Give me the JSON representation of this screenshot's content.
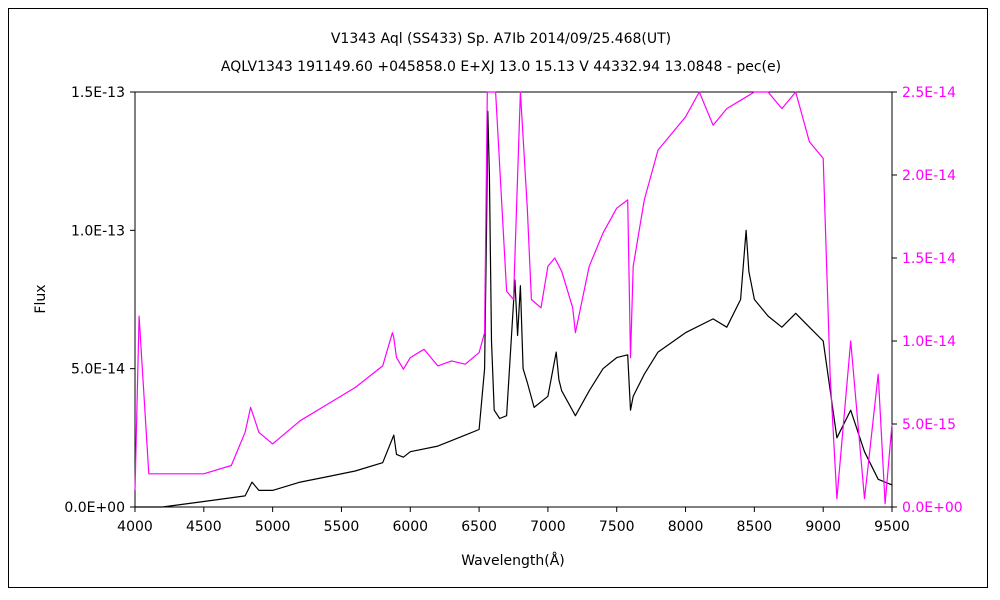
{
  "chart_data": {
    "type": "line",
    "title": "V1343 Aql (SS433)    Sp. A7Ib    2014/09/25.468(UT)",
    "subtitle": "AQLV1343 191149.60 +045858.0 E+XJ 13.0 15.13 V 44332.94 13.0848 - pec(e)",
    "xlabel": "Wavelength(Å)",
    "ylabel": "Flux",
    "xlim": [
      4000,
      9500
    ],
    "ylim": [
      0,
      1.5e-13
    ],
    "y2lim": [
      0,
      2.5e-14
    ],
    "x_ticks": [
      "4000",
      "4500",
      "5000",
      "5500",
      "6000",
      "6500",
      "7000",
      "7500",
      "8000",
      "8500",
      "9000",
      "9500"
    ],
    "y_ticks": [
      "0.0E+00",
      "5.0E-14",
      "1.0E-13",
      "1.5E-13"
    ],
    "y2_ticks": [
      "0.0E+00",
      "5.0E-15",
      "1.0E-14",
      "1.5E-14",
      "2.0E-14",
      "2.5E-14"
    ],
    "colors": {
      "primary": "#000000",
      "secondary": "#ff00ff"
    },
    "grid": false,
    "legend": "none",
    "series": [
      {
        "axis": "left",
        "color": "#000000",
        "x": [
          4000,
          4200,
          4500,
          4800,
          4850,
          4900,
          5000,
          5200,
          5400,
          5600,
          5800,
          5880,
          5900,
          5950,
          6000,
          6200,
          6300,
          6400,
          6500,
          6540,
          6555,
          6563,
          6575,
          6590,
          6610,
          6650,
          6700,
          6760,
          6780,
          6800,
          6820,
          6850,
          6900,
          7000,
          7060,
          7080,
          7100,
          7200,
          7300,
          7400,
          7500,
          7580,
          7600,
          7620,
          7700,
          7800,
          8000,
          8200,
          8300,
          8400,
          8440,
          8460,
          8500,
          8600,
          8700,
          8800,
          8900,
          9000,
          9100,
          9200,
          9300,
          9400,
          9500
        ],
        "y": [
          0,
          0,
          2e-15,
          4e-15,
          9e-15,
          6e-15,
          6e-15,
          9e-15,
          1.1e-14,
          1.3e-14,
          1.6e-14,
          2.6e-14,
          1.9e-14,
          1.8e-14,
          2e-14,
          2.2e-14,
          2.4e-14,
          2.6e-14,
          2.8e-14,
          5e-14,
          1.05e-13,
          1.43e-13,
          1.2e-13,
          6e-14,
          3.5e-14,
          3.2e-14,
          3.3e-14,
          8.2e-14,
          6.2e-14,
          8e-14,
          5e-14,
          4.5e-14,
          3.6e-14,
          4e-14,
          5.6e-14,
          4.6e-14,
          4.2e-14,
          3.3e-14,
          4.2e-14,
          5e-14,
          5.4e-14,
          5.5e-14,
          3.5e-14,
          4e-14,
          4.8e-14,
          5.6e-14,
          6.3e-14,
          6.8e-14,
          6.5e-14,
          7.5e-14,
          1e-13,
          8.5e-14,
          7.5e-14,
          6.9e-14,
          6.5e-14,
          7e-14,
          6.5e-14,
          6e-14,
          2.5e-14,
          3.5e-14,
          2e-14,
          1e-14,
          8e-15
        ]
      },
      {
        "axis": "right",
        "color": "#ff00ff",
        "x": [
          4000,
          4030,
          4100,
          4300,
          4500,
          4700,
          4800,
          4840,
          4860,
          4900,
          5000,
          5200,
          5400,
          5600,
          5800,
          5870,
          5880,
          5900,
          5950,
          6000,
          6100,
          6200,
          6300,
          6400,
          6500,
          6540,
          6560,
          6620,
          6700,
          6750,
          6800,
          6850,
          6880,
          6950,
          7000,
          7050,
          7100,
          7180,
          7200,
          7250,
          7300,
          7400,
          7500,
          7580,
          7600,
          7620,
          7700,
          7800,
          7900,
          8000,
          8100,
          8200,
          8300,
          8400,
          8500,
          8600,
          8700,
          8800,
          8900,
          9000,
          9050,
          9100,
          9200,
          9300,
          9400,
          9450,
          9500
        ],
        "y": [
          1e-15,
          1.15e-14,
          2e-15,
          2e-15,
          2e-15,
          2.5e-15,
          4.5e-15,
          6e-15,
          5.5e-15,
          4.5e-15,
          3.8e-15,
          5.2e-15,
          6.2e-15,
          7.2e-15,
          8.5e-15,
          1.05e-14,
          1.02e-14,
          9e-15,
          8.3e-15,
          9e-15,
          9.5e-15,
          8.5e-15,
          8.8e-15,
          8.6e-15,
          9.3e-15,
          1.05e-14,
          2.5e-14,
          2.5e-14,
          1.3e-14,
          1.25e-14,
          2.5e-14,
          1.8e-14,
          1.25e-14,
          1.2e-14,
          1.45e-14,
          1.5e-14,
          1.42e-14,
          1.2e-14,
          1.05e-14,
          1.25e-14,
          1.45e-14,
          1.65e-14,
          1.8e-14,
          1.85e-14,
          9e-15,
          1.45e-14,
          1.85e-14,
          2.15e-14,
          2.25e-14,
          2.35e-14,
          2.5e-14,
          2.3e-14,
          2.4e-14,
          2.45e-14,
          2.5e-14,
          2.5e-14,
          2.4e-14,
          2.5e-14,
          2.2e-14,
          2.1e-14,
          8e-15,
          5e-16,
          1e-14,
          5e-16,
          8e-15,
          2e-16,
          5e-15
        ]
      }
    ]
  }
}
